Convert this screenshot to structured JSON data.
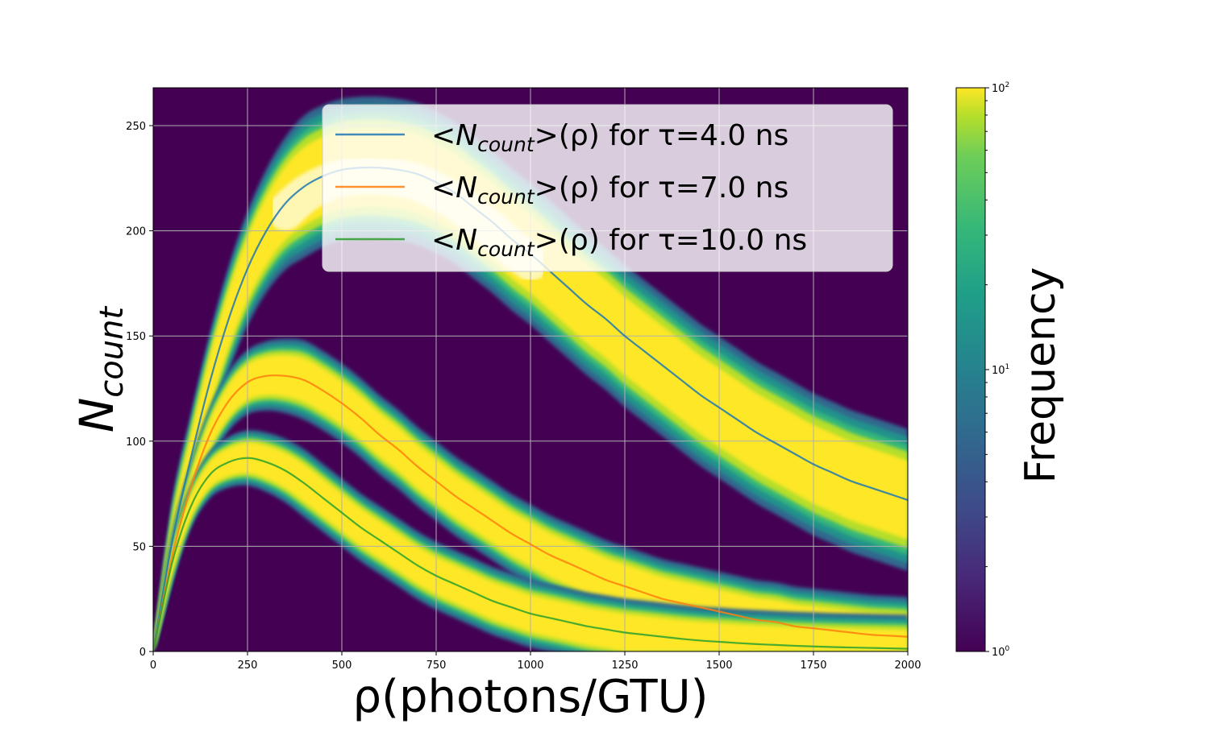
{
  "chart_data": {
    "type": "heatmap",
    "title": "",
    "xlabel": "ρ(photons/GTU)",
    "ylabel": {
      "main": "N",
      "sub": "count"
    },
    "xlim": [
      0,
      2000
    ],
    "ylim": [
      0,
      268
    ],
    "grid": true,
    "x_ticks": [
      0,
      250,
      500,
      750,
      1000,
      1250,
      1500,
      1750,
      2000
    ],
    "x_tick_labels": [
      "0",
      "250",
      "500",
      "750",
      "1000",
      "1250",
      "1500",
      "1750",
      "2000"
    ],
    "y_ticks": [
      0,
      50,
      100,
      150,
      200,
      250
    ],
    "y_tick_labels": [
      "0",
      "50",
      "100",
      "150",
      "200",
      "250"
    ],
    "background_color": "#440154",
    "series": [
      {
        "name": "<Ncount>(ρ) for τ=4.0 ns",
        "legend": {
          "prefix": "<N",
          "sub": "count",
          "suffix": ">(ρ) for τ=4.0 ns"
        },
        "tau_ns": 4.0,
        "color": "#1f77b4",
        "band_halfwidth": [
          12,
          25
        ],
        "x": [
          0,
          50,
          100,
          150,
          200,
          250,
          300,
          350,
          400,
          450,
          500,
          550,
          600,
          650,
          700,
          750,
          800,
          850,
          900,
          950,
          1000,
          1050,
          1100,
          1150,
          1200,
          1250,
          1300,
          1350,
          1400,
          1450,
          1500,
          1550,
          1600,
          1650,
          1700,
          1750,
          1800,
          1850,
          1900,
          1950,
          2000
        ],
        "y": [
          0,
          52,
          92,
          128,
          158,
          182,
          200,
          213,
          221,
          226,
          229,
          230,
          230,
          229,
          227,
          223,
          218,
          211,
          204,
          196,
          189,
          181,
          173,
          165,
          158,
          150,
          143,
          136,
          129,
          122,
          116,
          110,
          104,
          99,
          94,
          89,
          85,
          81,
          78,
          75,
          72
        ]
      },
      {
        "name": "<Ncount>(ρ) for τ=7.0 ns",
        "legend": {
          "prefix": "<N",
          "sub": "count",
          "suffix": ">(ρ) for τ=7.0 ns"
        },
        "tau_ns": 7.0,
        "color": "#ff7f0e",
        "band_halfwidth": [
          7,
          14
        ],
        "x": [
          0,
          50,
          100,
          150,
          200,
          250,
          300,
          350,
          400,
          450,
          500,
          550,
          600,
          650,
          700,
          750,
          800,
          850,
          900,
          950,
          1000,
          1050,
          1100,
          1150,
          1200,
          1250,
          1300,
          1350,
          1400,
          1450,
          1500,
          1550,
          1600,
          1650,
          1700,
          1750,
          1800,
          1850,
          1900,
          1950,
          2000
        ],
        "y": [
          0,
          45,
          78,
          103,
          119,
          128,
          131,
          131,
          129,
          124,
          118,
          111,
          103,
          96,
          88,
          81,
          74,
          68,
          62,
          56,
          51,
          46,
          42,
          38,
          34,
          31,
          28,
          25,
          23,
          21,
          19,
          17,
          15,
          14,
          12,
          11,
          10,
          9,
          8,
          7.5,
          7
        ]
      },
      {
        "name": "<Ncount>(ρ) for τ=10.0 ns",
        "legend": {
          "prefix": "<N",
          "sub": "count",
          "suffix": ">(ρ) for τ=10.0 ns"
        },
        "tau_ns": 10.0,
        "color": "#2ca02c",
        "band_halfwidth": [
          6,
          12
        ],
        "x": [
          0,
          50,
          100,
          150,
          200,
          250,
          300,
          350,
          400,
          450,
          500,
          550,
          600,
          650,
          700,
          750,
          800,
          850,
          900,
          950,
          1000,
          1050,
          1100,
          1150,
          1200,
          1250,
          1300,
          1350,
          1400,
          1450,
          1500,
          1550,
          1600,
          1650,
          1700,
          1750,
          1800,
          1850,
          1900,
          1950,
          2000
        ],
        "y": [
          0,
          42,
          69,
          84,
          90,
          92,
          90,
          86,
          80,
          73,
          66,
          59,
          53,
          47,
          41,
          36,
          32,
          28,
          24,
          21,
          18,
          16,
          14,
          12,
          10.5,
          9,
          8,
          7,
          6,
          5.2,
          4.6,
          4,
          3.5,
          3.1,
          2.7,
          2.4,
          2.1,
          1.9,
          1.7,
          1.5,
          1.3
        ]
      }
    ],
    "legend_position": "upper-right",
    "colorbar": {
      "label": "Frequency",
      "scale": "log",
      "range": [
        1,
        100
      ],
      "ticks": [
        {
          "value": 1,
          "base": "10",
          "exp": "0"
        },
        {
          "value": 10,
          "base": "10",
          "exp": "1"
        },
        {
          "value": 100,
          "base": "10",
          "exp": "2"
        }
      ],
      "colormap": "viridis"
    }
  }
}
